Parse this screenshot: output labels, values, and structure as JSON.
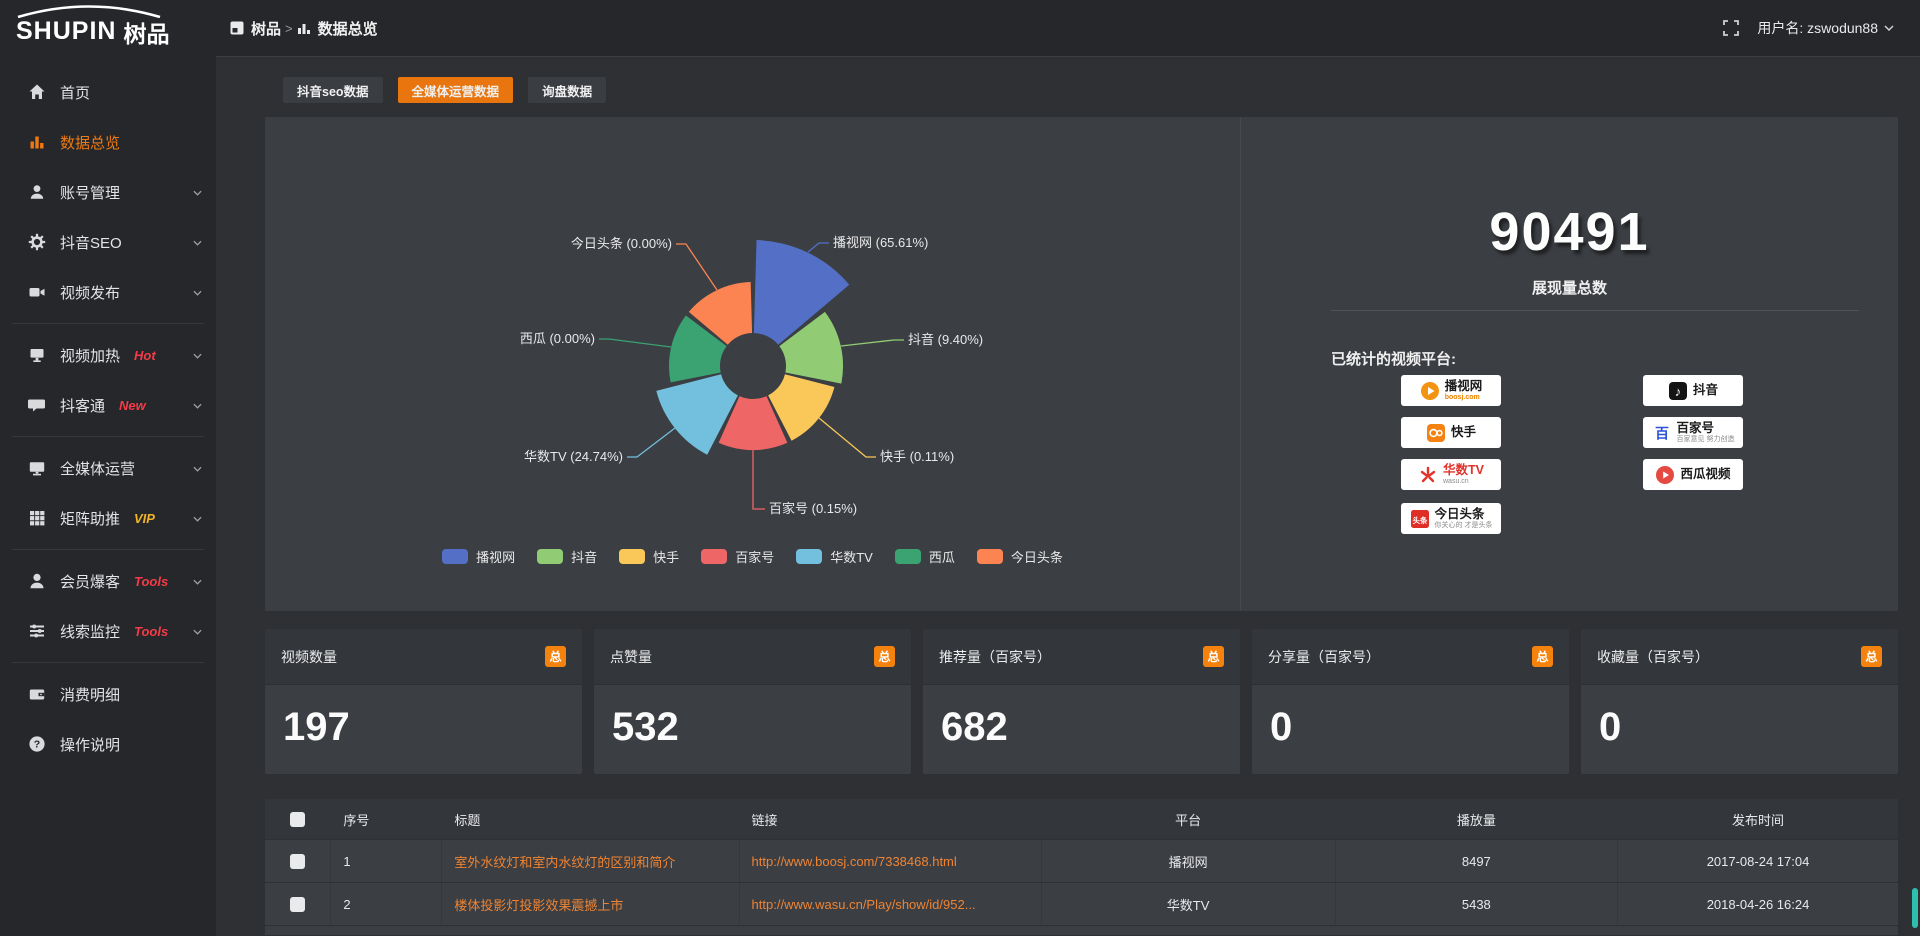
{
  "header": {
    "logo_en": "SHUPIN",
    "logo_cn": "树品",
    "breadcrumb": [
      {
        "label": "树品",
        "icon": "app-icon"
      },
      {
        "label": "数据总览",
        "icon": "bar-chart-icon"
      }
    ],
    "breadcrumb_separator": ">",
    "fullscreen_icon": "fullscreen-icon",
    "username_label": "用户名: zswodun88"
  },
  "sidebar": {
    "items": [
      {
        "label": "首页",
        "icon": "home",
        "badge": "",
        "badge_color": "",
        "active": false,
        "chevron": false,
        "divider_after": false
      },
      {
        "label": "数据总览",
        "icon": "bars",
        "badge": "",
        "badge_color": "",
        "active": true,
        "chevron": false,
        "divider_after": false
      },
      {
        "label": "账号管理",
        "icon": "user",
        "badge": "",
        "badge_color": "",
        "active": false,
        "chevron": true,
        "divider_after": false
      },
      {
        "label": "抖音SEO",
        "icon": "gear",
        "badge": "",
        "badge_color": "",
        "active": false,
        "chevron": true,
        "divider_after": false
      },
      {
        "label": "视频发布",
        "icon": "camera",
        "badge": "",
        "badge_color": "",
        "active": false,
        "chevron": true,
        "divider_after": true
      },
      {
        "label": "视频加热",
        "icon": "screen",
        "badge": "Hot",
        "badge_color": "#f43b47",
        "active": false,
        "chevron": true,
        "divider_after": false
      },
      {
        "label": "抖客通",
        "icon": "chat",
        "badge": "New",
        "badge_color": "#f43b47",
        "active": false,
        "chevron": true,
        "divider_after": true
      },
      {
        "label": "全媒体运营",
        "icon": "monitor",
        "badge": "",
        "badge_color": "",
        "active": false,
        "chevron": true,
        "divider_after": false
      },
      {
        "label": "矩阵助推",
        "icon": "grid",
        "badge": "VIP",
        "badge_color": "#f0b429",
        "active": false,
        "chevron": true,
        "divider_after": true
      },
      {
        "label": "会员爆客",
        "icon": "person",
        "badge": "Tools",
        "badge_color": "#f43b47",
        "active": false,
        "chevron": true,
        "divider_after": false
      },
      {
        "label": "线索监控",
        "icon": "sliders",
        "badge": "Tools",
        "badge_color": "#f43b47",
        "active": false,
        "chevron": true,
        "divider_after": true
      },
      {
        "label": "消费明细",
        "icon": "wallet",
        "badge": "",
        "badge_color": "",
        "active": false,
        "chevron": false,
        "divider_after": false
      },
      {
        "label": "操作说明",
        "icon": "question",
        "badge": "",
        "badge_color": "",
        "active": false,
        "chevron": false,
        "divider_after": false
      }
    ]
  },
  "tabs": [
    {
      "label": "抖音seo数据",
      "active": false
    },
    {
      "label": "全媒体运营数据",
      "active": true
    },
    {
      "label": "询盘数据",
      "active": false
    }
  ],
  "chart_data": {
    "type": "pie",
    "subtype": "nightingale-rose",
    "labels": [
      "播视网",
      "抖音",
      "快手",
      "百家号",
      "华数TV",
      "西瓜",
      "今日头条"
    ],
    "values_pct": [
      65.61,
      9.4,
      0.11,
      0.15,
      24.74,
      0.0,
      0.0
    ],
    "colors": [
      "#5470c6",
      "#91cc75",
      "#fac858",
      "#ee6666",
      "#73c0de",
      "#3ba272",
      "#fc8452"
    ],
    "legend": [
      "播视网",
      "抖音",
      "快手",
      "百家号",
      "华数TV",
      "西瓜",
      "今日头条"
    ],
    "legend_position": "bottom",
    "label_format": "{name} ({value}%)"
  },
  "summary": {
    "total_value": "90491",
    "total_label": "展现量总数",
    "platforms_title": "已统计的视频平台:",
    "platform_badges": [
      {
        "name": "播视网",
        "sub": "boosj.com",
        "sub_class": "orange",
        "logo": "boosj-logo",
        "col": 0,
        "row": 0
      },
      {
        "name": "抖音",
        "sub": "",
        "sub_class": "",
        "logo": "douyin-logo",
        "col": 1,
        "row": 0
      },
      {
        "name": "快手",
        "sub": "",
        "sub_class": "",
        "logo": "kuaishou-logo",
        "col": 0,
        "row": 1
      },
      {
        "name": "百家号",
        "sub": "百家意见 努力创造",
        "sub_class": "",
        "logo": "baijiahao-logo",
        "col": 1,
        "row": 1
      },
      {
        "name": "华数TV",
        "sub": "wasu.cn",
        "sub_class": "",
        "logo": "wasu-logo",
        "name_class": "red",
        "col": 0,
        "row": 2
      },
      {
        "name": "西瓜视频",
        "sub": "",
        "sub_class": "",
        "logo": "xigua-logo",
        "col": 1,
        "row": 2
      },
      {
        "name": "今日头条",
        "sub": "你关心的 才是头条",
        "sub_class": "",
        "logo": "toutiao-logo",
        "col": 0,
        "row": 3
      }
    ]
  },
  "stat_cards": [
    {
      "label": "视频数量",
      "badge": "总",
      "value": "197"
    },
    {
      "label": "点赞量",
      "badge": "总",
      "value": "532"
    },
    {
      "label": "推荐量（百家号）",
      "badge": "总",
      "value": "682"
    },
    {
      "label": "分享量（百家号）",
      "badge": "总",
      "value": "0"
    },
    {
      "label": "收藏量（百家号）",
      "badge": "总",
      "value": "0"
    }
  ],
  "table": {
    "headers": [
      "序号",
      "标题",
      "链接",
      "平台",
      "播放量",
      "发布时间"
    ],
    "rows": [
      {
        "num": "1",
        "title": "室外水纹灯和室内水纹灯的区别和简介",
        "link": "http://www.boosj.com/7338468.html",
        "platform": "播视网",
        "plays": "8497",
        "date": "2017-08-24 17:04"
      },
      {
        "num": "2",
        "title": "楼体投影灯投影效果震撼上市",
        "link": "http://www.wasu.cn/Play/show/id/952...",
        "platform": "华数TV",
        "plays": "5438",
        "date": "2018-04-26 16:24"
      }
    ]
  },
  "accent_color": "#e8750e",
  "panel_bg": "#3b3e43"
}
